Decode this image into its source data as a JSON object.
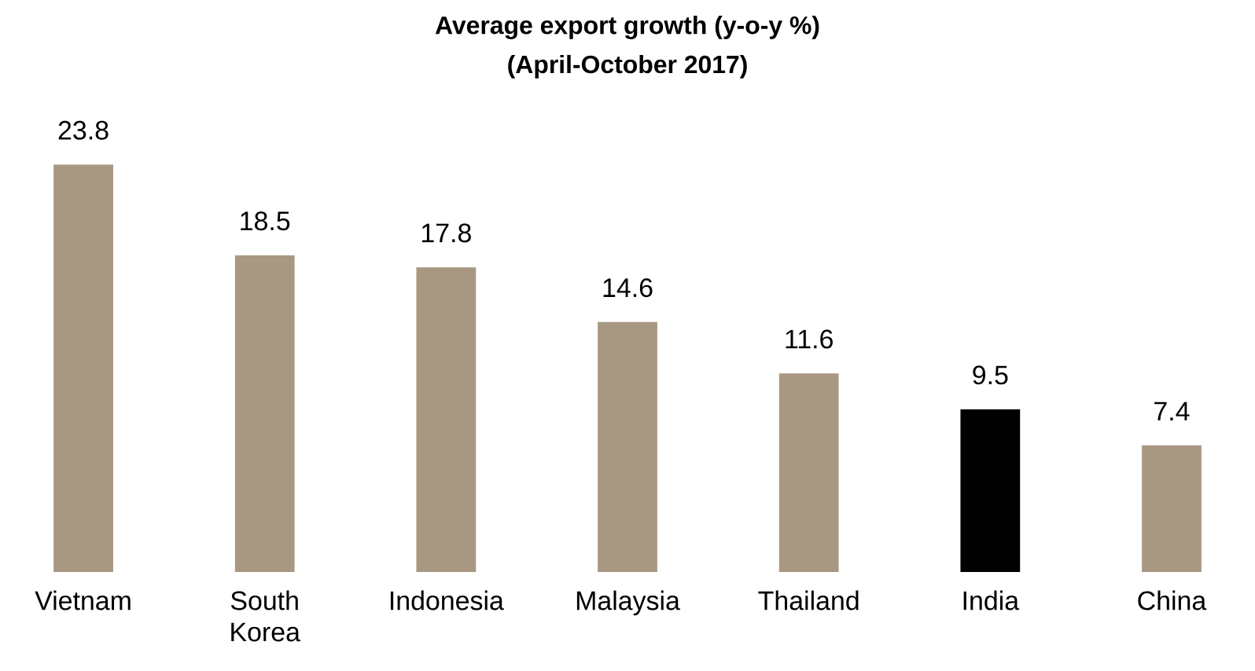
{
  "chart_data": {
    "type": "bar",
    "title": "Average export growth (y-o-y %)",
    "subtitle": "(April-October 2017)",
    "categories": [
      "Vietnam",
      "South Korea",
      "Indonesia",
      "Malaysia",
      "Thailand",
      "India",
      "China"
    ],
    "values": [
      23.8,
      18.5,
      17.8,
      14.6,
      11.6,
      9.5,
      7.4
    ],
    "colors": [
      "#a89882",
      "#a89882",
      "#a89882",
      "#a89882",
      "#a89882",
      "#000000",
      "#a89882"
    ],
    "data_labels": true
  }
}
